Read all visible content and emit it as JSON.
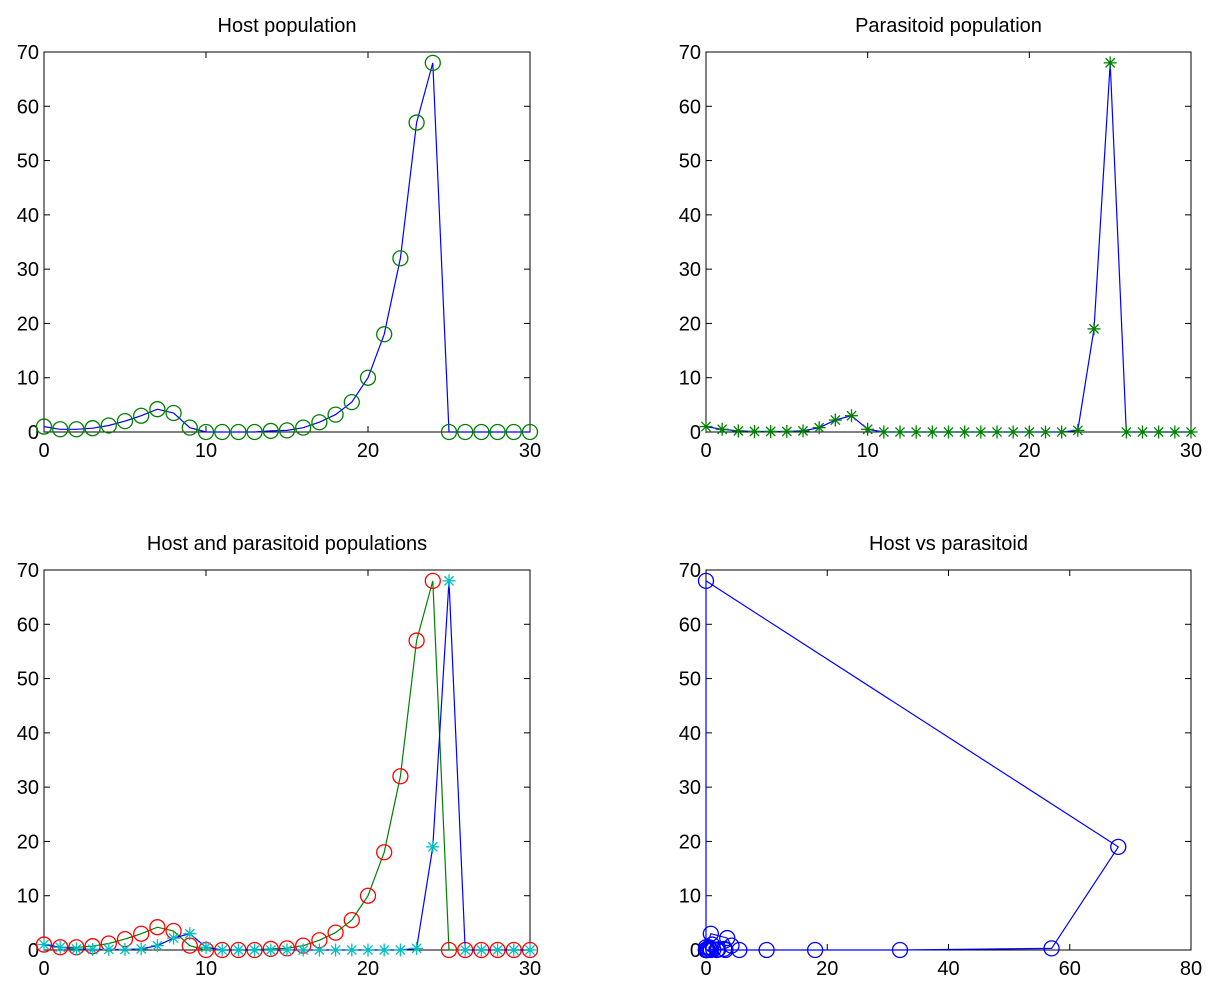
{
  "chart_data": [
    {
      "type": "line",
      "title": "Host population",
      "xlim": [
        0,
        30
      ],
      "ylim": [
        0,
        70
      ],
      "xticks": [
        0,
        10,
        20,
        30
      ],
      "yticks": [
        0,
        10,
        20,
        30,
        40,
        50,
        60,
        70
      ],
      "series": [
        {
          "marker": "o",
          "line_color": "#0000ff",
          "marker_color": "#008000",
          "x": [
            0,
            1,
            2,
            3,
            4,
            5,
            6,
            7,
            8,
            9,
            10,
            11,
            12,
            13,
            14,
            15,
            16,
            17,
            18,
            19,
            20,
            21,
            22,
            23,
            24,
            25,
            26,
            27,
            28,
            29,
            30
          ],
          "y": [
            1,
            0.5,
            0.5,
            0.7,
            1.2,
            2,
            3,
            4.2,
            3.5,
            0.8,
            0,
            0,
            0,
            0,
            0.2,
            0.3,
            0.8,
            1.8,
            3.2,
            5.5,
            10,
            18,
            32,
            57,
            68,
            0,
            0,
            0,
            0,
            0,
            0
          ]
        }
      ]
    },
    {
      "type": "line",
      "title": "Parasitoid population",
      "xlim": [
        0,
        30
      ],
      "ylim": [
        0,
        70
      ],
      "xticks": [
        0,
        10,
        20,
        30
      ],
      "yticks": [
        0,
        10,
        20,
        30,
        40,
        50,
        60,
        70
      ],
      "series": [
        {
          "marker": "*",
          "line_color": "#0000ff",
          "marker_color": "#008000",
          "x": [
            0,
            1,
            2,
            3,
            4,
            5,
            6,
            7,
            8,
            9,
            10,
            11,
            12,
            13,
            14,
            15,
            16,
            17,
            18,
            19,
            20,
            21,
            22,
            23,
            24,
            25,
            26,
            27,
            28,
            29,
            30
          ],
          "y": [
            1,
            0.5,
            0.2,
            0.1,
            0.1,
            0.1,
            0.2,
            0.8,
            2.2,
            3,
            0.5,
            0,
            0,
            0,
            0,
            0,
            0,
            0,
            0,
            0,
            0,
            0,
            0,
            0.3,
            19,
            68,
            0,
            0,
            0,
            0,
            0
          ]
        }
      ]
    },
    {
      "type": "line",
      "title": "Host and parasitoid populations",
      "xlim": [
        0,
        30
      ],
      "ylim": [
        0,
        70
      ],
      "xticks": [
        0,
        10,
        20,
        30
      ],
      "yticks": [
        0,
        10,
        20,
        30,
        40,
        50,
        60,
        70
      ],
      "series": [
        {
          "marker": "o",
          "line_color": "#008000",
          "marker_color": "#ff0000",
          "x": [
            0,
            1,
            2,
            3,
            4,
            5,
            6,
            7,
            8,
            9,
            10,
            11,
            12,
            13,
            14,
            15,
            16,
            17,
            18,
            19,
            20,
            21,
            22,
            23,
            24,
            25,
            26,
            27,
            28,
            29,
            30
          ],
          "y": [
            1,
            0.5,
            0.5,
            0.7,
            1.2,
            2,
            3,
            4.2,
            3.5,
            0.8,
            0,
            0,
            0,
            0,
            0.2,
            0.3,
            0.8,
            1.8,
            3.2,
            5.5,
            10,
            18,
            32,
            57,
            68,
            0,
            0,
            0,
            0,
            0,
            0
          ]
        },
        {
          "marker": "*",
          "line_color": "#0000ff",
          "marker_color": "#00bfbf",
          "x": [
            0,
            1,
            2,
            3,
            4,
            5,
            6,
            7,
            8,
            9,
            10,
            11,
            12,
            13,
            14,
            15,
            16,
            17,
            18,
            19,
            20,
            21,
            22,
            23,
            24,
            25,
            26,
            27,
            28,
            29,
            30
          ],
          "y": [
            1,
            0.5,
            0.2,
            0.1,
            0.1,
            0.1,
            0.2,
            0.8,
            2.2,
            3,
            0.5,
            0,
            0,
            0,
            0,
            0,
            0,
            0,
            0,
            0,
            0,
            0,
            0,
            0.3,
            19,
            68,
            0,
            0,
            0,
            0,
            0
          ]
        }
      ]
    },
    {
      "type": "line",
      "title": "Host vs parasitoid",
      "xlim": [
        0,
        80
      ],
      "ylim": [
        0,
        70
      ],
      "xticks": [
        0,
        20,
        40,
        60,
        80
      ],
      "yticks": [
        0,
        10,
        20,
        30,
        40,
        50,
        60,
        70
      ],
      "series": [
        {
          "marker": "o",
          "line_color": "#0000ff",
          "marker_color": "#0000ff",
          "x": [
            1,
            0.5,
            0.5,
            0.7,
            1.2,
            2,
            3,
            4.2,
            3.5,
            0.8,
            0,
            0,
            0,
            0,
            0.2,
            0.3,
            0.8,
            1.8,
            3.2,
            5.5,
            10,
            18,
            32,
            57,
            68,
            0,
            0,
            0,
            0,
            0,
            0
          ],
          "y": [
            1,
            0.5,
            0.2,
            0.1,
            0.1,
            0.1,
            0.2,
            0.8,
            2.2,
            3,
            0.5,
            0,
            0,
            0,
            0,
            0,
            0,
            0,
            0,
            0,
            0,
            0,
            0,
            0.3,
            19,
            68,
            0,
            0,
            0,
            0,
            0
          ]
        }
      ]
    }
  ]
}
